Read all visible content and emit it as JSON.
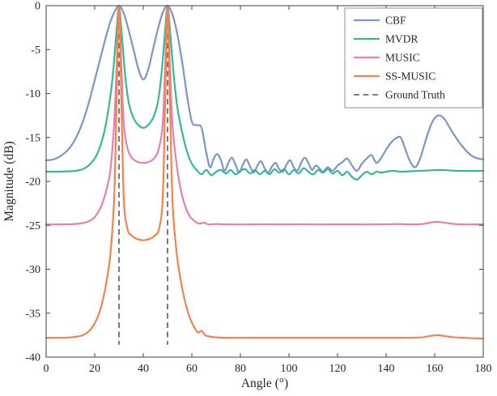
{
  "figure": {
    "background": "#ffffff",
    "text_color": "#262626",
    "box_color": "#404040"
  },
  "chart_data": {
    "type": "line",
    "title": "",
    "xlabel": "Angle (°)",
    "ylabel": "Magnitude (dB)",
    "xlim": [
      0,
      180
    ],
    "ylim": [
      -40,
      0
    ],
    "xticks": [
      0,
      20,
      40,
      60,
      80,
      100,
      120,
      140,
      160,
      180
    ],
    "yticks": [
      -40,
      -35,
      -30,
      -25,
      -20,
      -15,
      -10,
      -5,
      0
    ],
    "grid": false,
    "legend_position": "top-right",
    "series": [
      {
        "name": "CBF",
        "color": "#7d95c8",
        "width": 2.2,
        "points": [
          [
            0,
            -17.6
          ],
          [
            3,
            -17.5
          ],
          [
            6,
            -17.1
          ],
          [
            9,
            -16.4
          ],
          [
            12,
            -15.2
          ],
          [
            15,
            -13.3
          ],
          [
            18,
            -10.6
          ],
          [
            21,
            -7.4
          ],
          [
            24,
            -4.2
          ],
          [
            26,
            -2.2
          ],
          [
            28,
            -0.8
          ],
          [
            30,
            0
          ],
          [
            32,
            -0.9
          ],
          [
            34,
            -2.8
          ],
          [
            36,
            -5.0
          ],
          [
            38,
            -7.2
          ],
          [
            40,
            -8.4
          ],
          [
            42,
            -7.3
          ],
          [
            44,
            -5.0
          ],
          [
            46,
            -2.7
          ],
          [
            48,
            -0.8
          ],
          [
            50,
            0
          ],
          [
            52,
            -1.0
          ],
          [
            54,
            -3.2
          ],
          [
            56,
            -6.4
          ],
          [
            58,
            -10.2
          ],
          [
            60,
            -13.2
          ],
          [
            62,
            -13.6
          ],
          [
            64,
            -13.9
          ],
          [
            66,
            -16.8
          ],
          [
            67.5,
            -18.4
          ],
          [
            69,
            -17.4
          ],
          [
            70.5,
            -16.9
          ],
          [
            72,
            -17.6
          ],
          [
            73.5,
            -18.8
          ],
          [
            75,
            -17.9
          ],
          [
            76.5,
            -17.3
          ],
          [
            78,
            -18.1
          ],
          [
            79.5,
            -19.0
          ],
          [
            81,
            -18.1
          ],
          [
            82.5,
            -17.5
          ],
          [
            84,
            -18.3
          ],
          [
            85.5,
            -19.0
          ],
          [
            87,
            -18.2
          ],
          [
            88.5,
            -17.7
          ],
          [
            90,
            -18.5
          ],
          [
            91.5,
            -19.0
          ],
          [
            93,
            -18.3
          ],
          [
            94.5,
            -17.9
          ],
          [
            96,
            -18.6
          ],
          [
            97.5,
            -18.9
          ],
          [
            99,
            -18.1
          ],
          [
            100.5,
            -17.6
          ],
          [
            102,
            -18.4
          ],
          [
            103.5,
            -18.8
          ],
          [
            105,
            -17.9
          ],
          [
            106.5,
            -17.3
          ],
          [
            108,
            -17.9
          ],
          [
            109.5,
            -18.7
          ],
          [
            111,
            -18.2
          ],
          [
            112.5,
            -18.5
          ],
          [
            114,
            -18.9
          ],
          [
            116,
            -18.4
          ],
          [
            118,
            -18.8
          ],
          [
            120,
            -18.2
          ],
          [
            122,
            -17.8
          ],
          [
            124,
            -17.4
          ],
          [
            126,
            -18.2
          ],
          [
            128,
            -18.8
          ],
          [
            130,
            -18.0
          ],
          [
            132,
            -17.4
          ],
          [
            134,
            -17.0
          ],
          [
            136,
            -17.9
          ],
          [
            138,
            -17.3
          ],
          [
            140,
            -16.4
          ],
          [
            142,
            -15.6
          ],
          [
            144,
            -15.1
          ],
          [
            146,
            -15.0
          ],
          [
            148,
            -16.4
          ],
          [
            150,
            -17.8
          ],
          [
            152,
            -18.4
          ],
          [
            154,
            -17.4
          ],
          [
            156,
            -15.6
          ],
          [
            158,
            -13.9
          ],
          [
            160,
            -12.8
          ],
          [
            162,
            -12.5
          ],
          [
            164,
            -12.9
          ],
          [
            166,
            -13.8
          ],
          [
            168,
            -14.7
          ],
          [
            170,
            -15.5
          ],
          [
            172,
            -16.2
          ],
          [
            174,
            -16.8
          ],
          [
            176,
            -17.2
          ],
          [
            178,
            -17.4
          ],
          [
            180,
            -17.5
          ]
        ]
      },
      {
        "name": "MVDR",
        "color": "#34b995",
        "width": 2.2,
        "points": [
          [
            0,
            -18.9
          ],
          [
            5,
            -18.9
          ],
          [
            10,
            -18.85
          ],
          [
            14,
            -18.7
          ],
          [
            17,
            -18.3
          ],
          [
            20,
            -17.4
          ],
          [
            22,
            -16.2
          ],
          [
            24,
            -14.3
          ],
          [
            26,
            -11.2
          ],
          [
            27.5,
            -7.8
          ],
          [
            29,
            -2.8
          ],
          [
            30,
            0
          ],
          [
            31,
            -2.8
          ],
          [
            32.5,
            -7.8
          ],
          [
            34,
            -11.0
          ],
          [
            36,
            -12.8
          ],
          [
            38,
            -13.6
          ],
          [
            40,
            -13.9
          ],
          [
            42,
            -13.6
          ],
          [
            44,
            -12.8
          ],
          [
            46,
            -11.0
          ],
          [
            47.5,
            -7.8
          ],
          [
            49,
            -2.8
          ],
          [
            50,
            0
          ],
          [
            51,
            -2.8
          ],
          [
            52.5,
            -7.8
          ],
          [
            54,
            -11.5
          ],
          [
            56,
            -14.4
          ],
          [
            58,
            -16.6
          ],
          [
            60,
            -18.0
          ],
          [
            62,
            -18.7
          ],
          [
            64,
            -19.2
          ],
          [
            66,
            -18.7
          ],
          [
            68,
            -19.3
          ],
          [
            70,
            -18.9
          ],
          [
            72,
            -18.7
          ],
          [
            74,
            -19.1
          ],
          [
            76,
            -18.7
          ],
          [
            78,
            -19.2
          ],
          [
            80,
            -18.8
          ],
          [
            82,
            -18.6
          ],
          [
            84,
            -19.1
          ],
          [
            86,
            -18.7
          ],
          [
            88,
            -19.2
          ],
          [
            90,
            -18.8
          ],
          [
            92,
            -19.2
          ],
          [
            94,
            -18.6
          ],
          [
            96,
            -19.0
          ],
          [
            98,
            -18.6
          ],
          [
            100,
            -19.2
          ],
          [
            102,
            -18.7
          ],
          [
            104,
            -19.1
          ],
          [
            106,
            -18.5
          ],
          [
            108,
            -18.9
          ],
          [
            110,
            -19.2
          ],
          [
            112,
            -18.7
          ],
          [
            114,
            -19.0
          ],
          [
            116,
            -18.6
          ],
          [
            118,
            -19.1
          ],
          [
            120,
            -18.8
          ],
          [
            122,
            -19.3
          ],
          [
            124,
            -18.9
          ],
          [
            126,
            -19.5
          ],
          [
            128,
            -19.8
          ],
          [
            130,
            -19.3
          ],
          [
            132,
            -18.9
          ],
          [
            134,
            -19.2
          ],
          [
            136,
            -18.9
          ],
          [
            138,
            -19.0
          ],
          [
            140,
            -18.9
          ],
          [
            143,
            -18.8
          ],
          [
            146,
            -18.9
          ],
          [
            150,
            -18.85
          ],
          [
            154,
            -18.8
          ],
          [
            158,
            -18.75
          ],
          [
            162,
            -18.7
          ],
          [
            166,
            -18.75
          ],
          [
            170,
            -18.8
          ],
          [
            174,
            -18.8
          ],
          [
            180,
            -18.8
          ]
        ]
      },
      {
        "name": "MUSIC",
        "color": "#e77fb3",
        "width": 2.2,
        "points": [
          [
            0,
            -24.9
          ],
          [
            6,
            -24.9
          ],
          [
            12,
            -24.85
          ],
          [
            16,
            -24.7
          ],
          [
            19,
            -24.3
          ],
          [
            21,
            -23.7
          ],
          [
            23,
            -22.6
          ],
          [
            25,
            -20.8
          ],
          [
            26.5,
            -18.6
          ],
          [
            28,
            -13.5
          ],
          [
            29,
            -7
          ],
          [
            30,
            0
          ],
          [
            31,
            -7
          ],
          [
            32,
            -13.5
          ],
          [
            33.5,
            -16.2
          ],
          [
            35,
            -17.2
          ],
          [
            37,
            -17.7
          ],
          [
            40,
            -17.9
          ],
          [
            43,
            -17.7
          ],
          [
            45,
            -17.2
          ],
          [
            46.5,
            -16.2
          ],
          [
            48,
            -13.5
          ],
          [
            49,
            -7
          ],
          [
            50,
            0
          ],
          [
            51,
            -7
          ],
          [
            52,
            -13.5
          ],
          [
            53.5,
            -17.5
          ],
          [
            55,
            -20.3
          ],
          [
            57,
            -22.6
          ],
          [
            59,
            -23.9
          ],
          [
            61,
            -24.5
          ],
          [
            63,
            -24.8
          ],
          [
            65,
            -24.7
          ],
          [
            67,
            -24.9
          ],
          [
            70,
            -24.85
          ],
          [
            75,
            -24.9
          ],
          [
            80,
            -24.9
          ],
          [
            85,
            -24.9
          ],
          [
            90,
            -24.88
          ],
          [
            95,
            -24.9
          ],
          [
            100,
            -24.9
          ],
          [
            105,
            -24.88
          ],
          [
            110,
            -24.9
          ],
          [
            115,
            -24.9
          ],
          [
            120,
            -24.9
          ],
          [
            125,
            -24.9
          ],
          [
            130,
            -24.9
          ],
          [
            135,
            -24.9
          ],
          [
            140,
            -24.88
          ],
          [
            145,
            -24.85
          ],
          [
            150,
            -24.9
          ],
          [
            155,
            -24.85
          ],
          [
            158,
            -24.7
          ],
          [
            161,
            -24.6
          ],
          [
            164,
            -24.7
          ],
          [
            168,
            -24.85
          ],
          [
            172,
            -24.9
          ],
          [
            176,
            -24.9
          ],
          [
            180,
            -24.9
          ]
        ]
      },
      {
        "name": "SS-MUSIC",
        "color": "#f5824e",
        "width": 2.2,
        "points": [
          [
            0,
            -37.8
          ],
          [
            6,
            -37.8
          ],
          [
            10,
            -37.75
          ],
          [
            14,
            -37.6
          ],
          [
            17,
            -37.2
          ],
          [
            19,
            -36.6
          ],
          [
            21,
            -35.6
          ],
          [
            23,
            -33.9
          ],
          [
            25,
            -31.2
          ],
          [
            26.5,
            -28.2
          ],
          [
            28,
            -22
          ],
          [
            29,
            -11
          ],
          [
            30,
            0
          ],
          [
            31,
            -11
          ],
          [
            32,
            -22
          ],
          [
            33.5,
            -25.4
          ],
          [
            35,
            -26.1
          ],
          [
            37,
            -26.5
          ],
          [
            40,
            -26.7
          ],
          [
            43,
            -26.5
          ],
          [
            45,
            -26.1
          ],
          [
            46.5,
            -25.4
          ],
          [
            48,
            -22
          ],
          [
            49,
            -11
          ],
          [
            50,
            0
          ],
          [
            51,
            -11
          ],
          [
            52,
            -22
          ],
          [
            53.5,
            -27.5
          ],
          [
            55,
            -30.6
          ],
          [
            57,
            -33.4
          ],
          [
            59,
            -35.4
          ],
          [
            61,
            -36.6
          ],
          [
            62.5,
            -37.2
          ],
          [
            64,
            -37.0
          ],
          [
            65.5,
            -37.5
          ],
          [
            67,
            -37.65
          ],
          [
            70,
            -37.75
          ],
          [
            75,
            -37.8
          ],
          [
            80,
            -37.8
          ],
          [
            85,
            -37.8
          ],
          [
            90,
            -37.8
          ],
          [
            95,
            -37.8
          ],
          [
            100,
            -37.8
          ],
          [
            105,
            -37.8
          ],
          [
            110,
            -37.8
          ],
          [
            115,
            -37.8
          ],
          [
            120,
            -37.8
          ],
          [
            125,
            -37.8
          ],
          [
            130,
            -37.8
          ],
          [
            135,
            -37.8
          ],
          [
            140,
            -37.8
          ],
          [
            145,
            -37.8
          ],
          [
            150,
            -37.8
          ],
          [
            155,
            -37.75
          ],
          [
            158,
            -37.6
          ],
          [
            161,
            -37.5
          ],
          [
            164,
            -37.6
          ],
          [
            168,
            -37.75
          ],
          [
            172,
            -37.8
          ],
          [
            176,
            -37.85
          ],
          [
            180,
            -37.9
          ]
        ]
      },
      {
        "name": "Ground Truth",
        "color": "#595959",
        "width": 1.6,
        "dash": "7,4.5",
        "vertical_lines": [
          30,
          50
        ],
        "line_y_range": [
          0,
          -38.6
        ]
      }
    ]
  }
}
